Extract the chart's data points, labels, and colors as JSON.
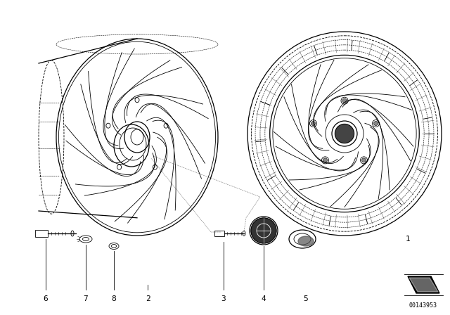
{
  "bg_color": "#ffffff",
  "line_color": "#000000",
  "fig_width": 6.4,
  "fig_height": 4.48,
  "dpi": 100,
  "title_number": "00143953"
}
